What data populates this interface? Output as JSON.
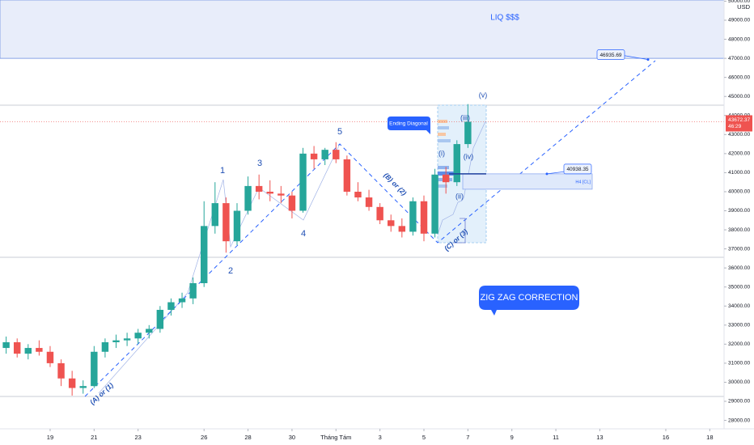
{
  "chart_data": {
    "type": "candlestick",
    "currency": "USD",
    "ylim": [
      26707,
      50062
    ],
    "yticks": [
      {
        "value": 28000,
        "label": "28000.00"
      },
      {
        "value": 29000,
        "label": "29000.00"
      },
      {
        "value": 30000,
        "label": "30000.00"
      },
      {
        "value": 31000,
        "label": "31000.00"
      },
      {
        "value": 32000,
        "label": "32000.00"
      },
      {
        "value": 33000,
        "label": "33000.00"
      },
      {
        "value": 34000,
        "label": "34000.00"
      },
      {
        "value": 35000,
        "label": "35000.00"
      },
      {
        "value": 36000,
        "label": "36000.00"
      },
      {
        "value": 37000,
        "label": "37000.00"
      },
      {
        "value": 38000,
        "label": "38000.00"
      },
      {
        "value": 39000,
        "label": "39000.00"
      },
      {
        "value": 40000,
        "label": "40000.00"
      },
      {
        "value": 41000,
        "label": "41000.00"
      },
      {
        "value": 42000,
        "label": "42000.00"
      },
      {
        "value": 43000,
        "label": "43000.00"
      },
      {
        "value": 44000,
        "label": "44000.00"
      },
      {
        "value": 45000,
        "label": "45000.00"
      },
      {
        "value": 46000,
        "label": "46000.00"
      },
      {
        "value": 47000,
        "label": "47000.00"
      },
      {
        "value": 48000,
        "label": "48000.00"
      },
      {
        "value": 49000,
        "label": "49000.00"
      },
      {
        "value": 50000,
        "label": "50000.00"
      }
    ],
    "xlim": [
      -0.56,
      65.3
    ],
    "xticks": [
      {
        "value": 4,
        "label": "19"
      },
      {
        "value": 8,
        "label": "21"
      },
      {
        "value": 12,
        "label": "23"
      },
      {
        "value": 18,
        "label": "26"
      },
      {
        "value": 22,
        "label": "28"
      },
      {
        "value": 26,
        "label": "30"
      },
      {
        "value": 30,
        "label": "Tháng Tám"
      },
      {
        "value": 34,
        "label": "3"
      },
      {
        "value": 38,
        "label": "5"
      },
      {
        "value": 42,
        "label": "7"
      },
      {
        "value": 46,
        "label": "9"
      },
      {
        "value": 50,
        "label": "11"
      },
      {
        "value": 54,
        "label": "13"
      },
      {
        "value": 60,
        "label": "16"
      },
      {
        "value": 64,
        "label": "18"
      }
    ],
    "open": [
      31800,
      32100,
      31500,
      31800,
      31600,
      31000,
      30200,
      29700,
      29800,
      31600,
      32100,
      32200,
      32300,
      32600,
      32800,
      33800,
      34200,
      34400,
      35200,
      38200,
      39400,
      37400,
      39000,
      40300,
      40000,
      39900,
      39800,
      39000,
      42000,
      41700,
      42200,
      41700,
      40000,
      39700,
      39200,
      38500,
      38200,
      37900,
      39500,
      37800,
      40900,
      40500,
      42500
    ],
    "high": [
      32400,
      32300,
      32000,
      32200,
      31900,
      31200,
      30600,
      30100,
      31900,
      32300,
      32500,
      32600,
      32800,
      33000,
      34000,
      34400,
      34700,
      35500,
      39500,
      40500,
      39700,
      39400,
      40800,
      40900,
      40600,
      40300,
      40000,
      42300,
      42400,
      42300,
      42600,
      41900,
      40500,
      40100,
      39400,
      38800,
      38600,
      39700,
      39800,
      41200,
      41300,
      42700,
      44600
    ],
    "low": [
      31500,
      31300,
      31200,
      31400,
      30800,
      29800,
      29300,
      29400,
      29700,
      31300,
      31800,
      31900,
      32000,
      32300,
      32600,
      33500,
      33900,
      34100,
      35000,
      37800,
      36800,
      37200,
      38800,
      39600,
      39500,
      39400,
      38600,
      38900,
      41200,
      41400,
      41500,
      39800,
      39500,
      39000,
      38300,
      37900,
      37600,
      37700,
      37400,
      37600,
      39900,
      40300,
      42300
    ],
    "close": [
      32100,
      31500,
      31800,
      31600,
      31000,
      30200,
      29700,
      29800,
      31600,
      32100,
      32200,
      32300,
      32600,
      32800,
      33800,
      34200,
      34400,
      35200,
      38200,
      39400,
      37400,
      39000,
      40300,
      40000,
      39900,
      39800,
      39000,
      42000,
      41700,
      42200,
      41700,
      40000,
      39700,
      39200,
      38500,
      38200,
      37900,
      39500,
      37800,
      40900,
      40500,
      42500,
      43672.37
    ],
    "up_color": "#26a69a",
    "down_color": "#ef5350",
    "last_price": 43672.37,
    "countdown": "46:29",
    "levels": [
      46935.69,
      40938.35
    ],
    "zone_label": "LIQ $$$",
    "zone_from": 47000,
    "box_label": "H4 [CL]",
    "annotations": [
      "1",
      "2",
      "3",
      "4",
      "5",
      "(A) or (1)",
      "(B) or (2)",
      "(C) or (3)",
      "(i)",
      "(ii)",
      "(iii)",
      "(iv)",
      "(v)",
      "Ending Diagonal",
      "ZIG ZAG CORRECTION"
    ]
  }
}
